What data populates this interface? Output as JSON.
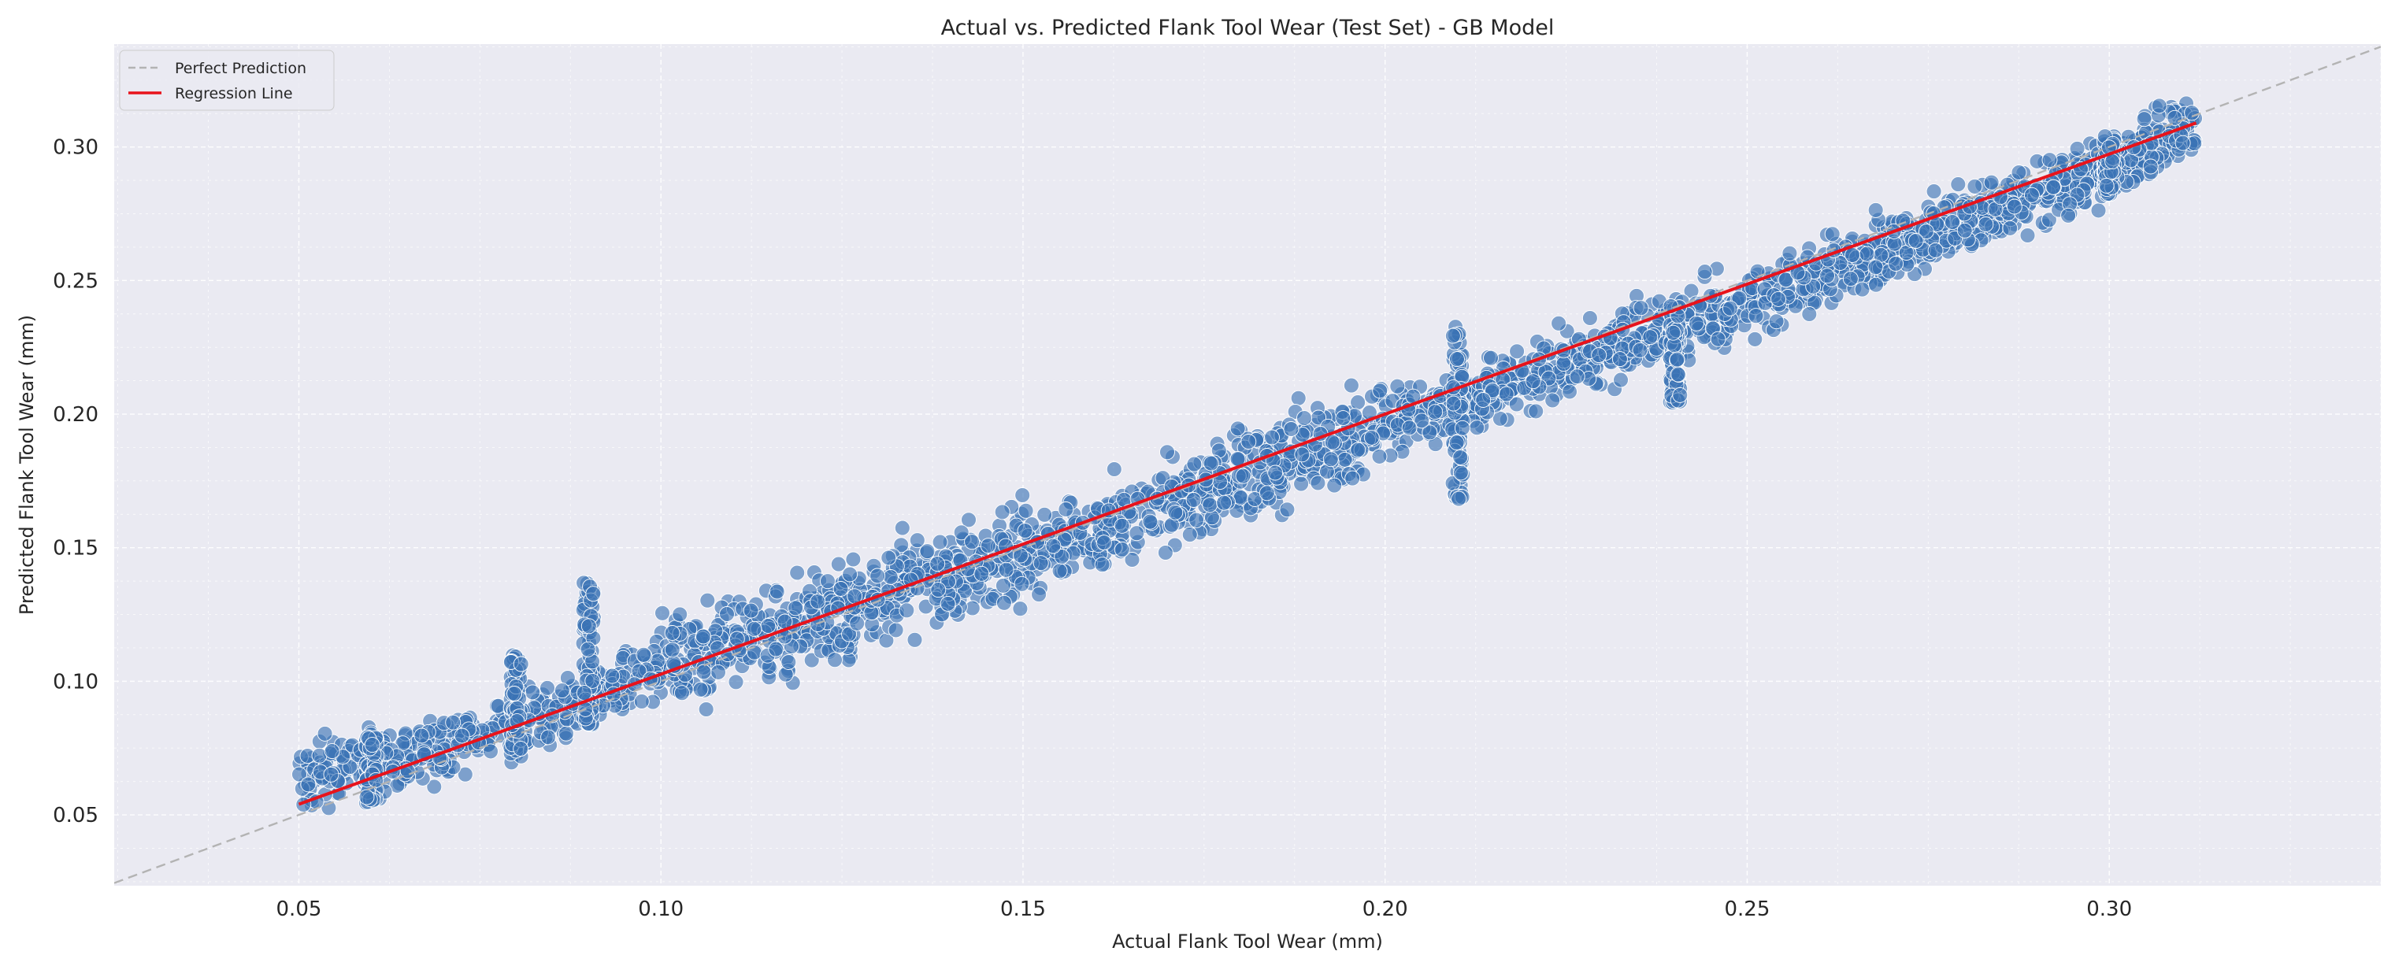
{
  "chart_data": {
    "type": "scatter",
    "title": "Actual vs. Predicted Flank Tool Wear (Test Set) - GB Model",
    "xlabel": "Actual Flank Tool Wear (mm)",
    "ylabel": "Predicted Flank Tool Wear (mm)",
    "xlim": [
      0.0245,
      0.3375
    ],
    "ylim": [
      0.0235,
      0.3385
    ],
    "xticks": [
      0.05,
      0.1,
      0.15,
      0.2,
      0.25,
      0.3
    ],
    "xtick_labels": [
      "0.05",
      "0.10",
      "0.15",
      "0.20",
      "0.25",
      "0.30"
    ],
    "yticks": [
      0.05,
      0.1,
      0.15,
      0.2,
      0.25,
      0.3
    ],
    "ytick_labels": [
      "0.05",
      "0.10",
      "0.15",
      "0.20",
      "0.25",
      "0.30"
    ],
    "grid": true,
    "legend_position": "top-left",
    "legend": [
      {
        "label": "Perfect Prediction",
        "style": "dashed",
        "color": "#b3b3b3"
      },
      {
        "label": "Regression Line",
        "style": "solid",
        "color": "#e8131b"
      }
    ],
    "series": [
      {
        "type": "scatter",
        "color": "#3a72b5",
        "x_range": [
          0.05,
          0.312
        ],
        "clusters": [
          {
            "x": 0.06,
            "y_range": [
              0.053,
              0.081
            ]
          },
          {
            "x": 0.08,
            "y_range": [
              0.073,
              0.11
            ]
          },
          {
            "x": 0.09,
            "y_range": [
              0.083,
              0.137
            ]
          },
          {
            "x": 0.21,
            "y_range": [
              0.168,
              0.233
            ]
          },
          {
            "x": 0.24,
            "y_range": [
              0.204,
              0.241
            ]
          },
          {
            "x": 0.3,
            "y_range": [
              0.282,
              0.304
            ]
          }
        ],
        "sample_points": [
          {
            "x": 0.05,
            "y": 0.066
          },
          {
            "x": 0.06,
            "y": 0.068
          },
          {
            "x": 0.07,
            "y": 0.075
          },
          {
            "x": 0.08,
            "y": 0.084
          },
          {
            "x": 0.09,
            "y": 0.092
          },
          {
            "x": 0.1,
            "y": 0.105
          },
          {
            "x": 0.12,
            "y": 0.122
          },
          {
            "x": 0.14,
            "y": 0.14
          },
          {
            "x": 0.16,
            "y": 0.157
          },
          {
            "x": 0.18,
            "y": 0.175
          },
          {
            "x": 0.2,
            "y": 0.196
          },
          {
            "x": 0.22,
            "y": 0.214
          },
          {
            "x": 0.24,
            "y": 0.232
          },
          {
            "x": 0.26,
            "y": 0.252
          },
          {
            "x": 0.28,
            "y": 0.273
          },
          {
            "x": 0.3,
            "y": 0.293
          },
          {
            "x": 0.312,
            "y": 0.308
          }
        ]
      },
      {
        "type": "line",
        "name": "Perfect Prediction",
        "x": [
          0.0245,
          0.3375
        ],
        "y": [
          0.0245,
          0.3375
        ]
      },
      {
        "type": "line",
        "name": "Regression Line",
        "x": [
          0.05,
          0.312
        ],
        "y": [
          0.054,
          0.309
        ]
      }
    ]
  },
  "colors": {
    "plot_background": "#eaeaf2",
    "grid": "#ffffff",
    "points": "#3a72b5",
    "point_edge": "#ffffff",
    "perfect_line": "#b3b3b3",
    "regression_line": "#e8131b"
  }
}
